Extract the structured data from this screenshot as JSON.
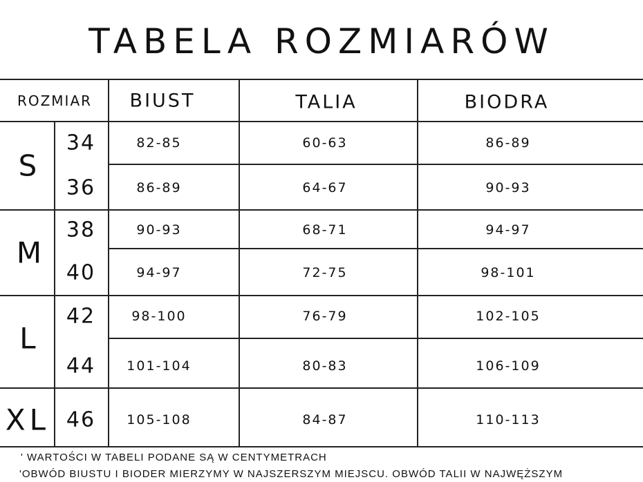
{
  "title": "TABELA ROZMIARÓW",
  "headers": {
    "size": "ROZMIAR",
    "bust": "BIUST",
    "waist": "TALIA",
    "hips": "BIODRA"
  },
  "groups": [
    {
      "label": "S",
      "rows": [
        {
          "eu": "34",
          "bust": "82-85",
          "waist": "60-63",
          "hips": "86-89"
        },
        {
          "eu": "36",
          "bust": "86-89",
          "waist": "64-67",
          "hips": "90-93"
        }
      ]
    },
    {
      "label": "M",
      "rows": [
        {
          "eu": "38",
          "bust": "90-93",
          "waist": "68-71",
          "hips": "94-97"
        },
        {
          "eu": "40",
          "bust": "94-97",
          "waist": "72-75",
          "hips": "98-101"
        }
      ]
    },
    {
      "label": "L",
      "rows": [
        {
          "eu": "42",
          "bust": "98-100",
          "waist": "76-79",
          "hips": "102-105"
        },
        {
          "eu": "44",
          "bust": "101-104",
          "waist": "80-83",
          "hips": "106-109"
        }
      ]
    },
    {
      "label": "XL",
      "rows": [
        {
          "eu": "46",
          "bust": "105-108",
          "waist": "84-87",
          "hips": "110-113"
        }
      ]
    }
  ],
  "notes": [
    "' WARTOŚCI W TABELI PODANE SĄ W CENTYMETRACH",
    "'OBWÓD BIUSTU I BIODER MIERZYMY W NAJSZERSZYM MIEJSCU. OBWÓD TALII W NAJWĘŻSZYM"
  ]
}
